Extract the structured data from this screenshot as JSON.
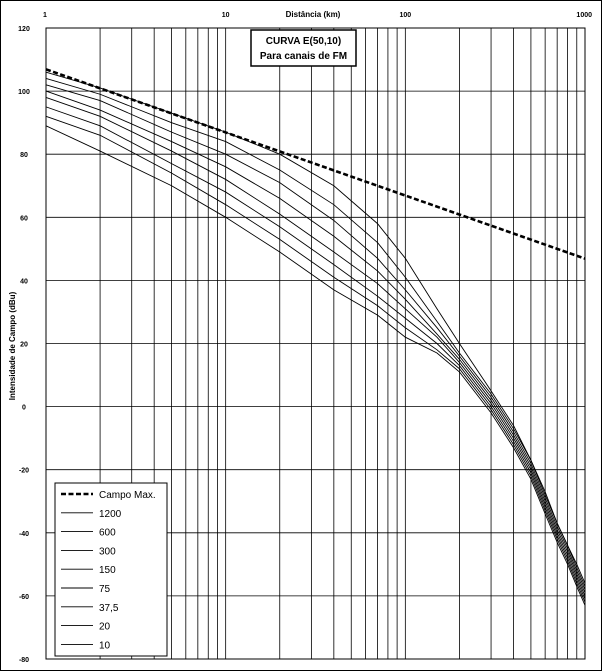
{
  "chart_data": {
    "type": "line",
    "title": "CURVA E(50,10)",
    "subtitle": "Para canais de FM",
    "xlabel": "Distância (km)",
    "ylabel": "Intensidade de Campo (dBu)",
    "xscale": "log",
    "xlim": [
      1,
      1000
    ],
    "ylim": [
      -80,
      120
    ],
    "x_ticks": [
      "1",
      "10",
      "100",
      "1000"
    ],
    "y_ticks": [
      "120",
      "100",
      "80",
      "60",
      "40",
      "20",
      "0",
      "-20",
      "-40",
      "-60",
      "-80"
    ],
    "grid": true,
    "legend_position": "bottom-left",
    "series": [
      {
        "name": "Campo Max.",
        "style": "dashed",
        "x": [
          1,
          10,
          100,
          1000
        ],
        "y": [
          106.9,
          86.9,
          66.9,
          46.9
        ]
      },
      {
        "name": "1200",
        "style": "solid",
        "x": [
          1,
          2,
          5,
          10,
          20,
          40,
          70,
          100,
          150,
          200,
          300,
          400,
          500,
          600,
          700,
          800,
          900,
          1000
        ],
        "y": [
          106,
          101,
          93,
          87,
          80,
          70,
          58,
          47,
          31,
          20,
          5,
          -6,
          -17,
          -27,
          -37,
          -44,
          -50,
          -56
        ]
      },
      {
        "name": "600",
        "style": "solid",
        "x": [
          1,
          2,
          5,
          10,
          20,
          40,
          70,
          100,
          150,
          200,
          300,
          400,
          500,
          600,
          700,
          800,
          900,
          1000
        ],
        "y": [
          104,
          99,
          90,
          84,
          75,
          64,
          52,
          41,
          27,
          17,
          4,
          -7,
          -17,
          -28,
          -37,
          -44,
          -51,
          -57
        ]
      },
      {
        "name": "300",
        "style": "solid",
        "x": [
          1,
          2,
          5,
          10,
          20,
          40,
          70,
          100,
          150,
          200,
          300,
          400,
          500,
          600,
          700,
          800,
          900,
          1000
        ],
        "y": [
          102,
          97,
          87,
          80,
          71,
          59,
          47,
          37,
          25,
          16,
          3,
          -8,
          -18,
          -29,
          -38,
          -45,
          -52,
          -58
        ]
      },
      {
        "name": "150",
        "style": "solid",
        "x": [
          1,
          2,
          5,
          10,
          20,
          40,
          70,
          100,
          150,
          200,
          300,
          400,
          500,
          600,
          700,
          800,
          900,
          1000
        ],
        "y": [
          100,
          94,
          84,
          76,
          66,
          54,
          43,
          34,
          23,
          15,
          2,
          -9,
          -19,
          -30,
          -39,
          -46,
          -53,
          -59
        ]
      },
      {
        "name": "75",
        "style": "solid",
        "x": [
          1,
          2,
          5,
          10,
          20,
          40,
          70,
          100,
          150,
          200,
          300,
          400,
          500,
          600,
          700,
          800,
          900,
          1000
        ],
        "y": [
          98,
          92,
          81,
          72,
          61,
          49,
          39,
          31,
          22,
          14,
          1,
          -10,
          -20,
          -31,
          -40,
          -47,
          -54,
          -60
        ]
      },
      {
        "name": "37,5",
        "style": "solid",
        "x": [
          1,
          2,
          5,
          10,
          20,
          40,
          70,
          100,
          150,
          200,
          300,
          400,
          500,
          600,
          700,
          800,
          900,
          1000
        ],
        "y": [
          95,
          89,
          77,
          68,
          57,
          45,
          35,
          28,
          20,
          13,
          0,
          -11,
          -21,
          -32,
          -41,
          -48,
          -55,
          -61
        ]
      },
      {
        "name": "20",
        "style": "solid",
        "x": [
          1,
          2,
          5,
          10,
          20,
          40,
          70,
          100,
          150,
          200,
          300,
          400,
          500,
          600,
          700,
          800,
          900,
          1000
        ],
        "y": [
          92,
          86,
          74,
          64,
          53,
          41,
          32,
          25,
          18,
          12,
          -1,
          -12,
          -22,
          -33,
          -42,
          -49,
          -56,
          -62
        ]
      },
      {
        "name": "10",
        "style": "solid",
        "x": [
          1,
          2,
          5,
          10,
          20,
          40,
          70,
          100,
          150,
          200,
          300,
          400,
          500,
          600,
          700,
          800,
          900,
          1000
        ],
        "y": [
          89,
          81,
          70,
          60,
          49,
          37,
          29,
          22,
          17,
          11,
          -2,
          -13,
          -23,
          -34,
          -43,
          -50,
          -57,
          -63
        ]
      }
    ]
  }
}
